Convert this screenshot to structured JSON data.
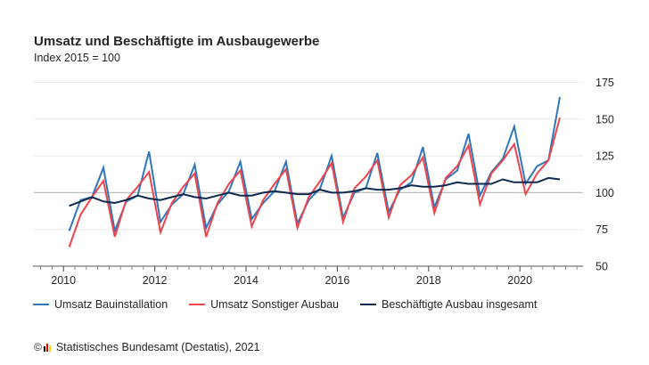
{
  "header": {
    "title": "Umsatz und Beschäftigte im Ausbaugewerbe",
    "subtitle": "Index 2015 = 100"
  },
  "footer": {
    "copyright_symbol": "©",
    "source": "Statistisches Bundesamt (Destatis), 2021",
    "logo_colors": [
      "#000000",
      "#dd0000",
      "#ffcc00"
    ]
  },
  "colors": {
    "bauinstallation": "#2f77bc",
    "sonstiger_ausbau": "#f0444b",
    "beschaeftigte": "#0e2b4f",
    "grid": "#e8e8e8",
    "reference_line": "#bdbdbd",
    "axis": "#555555"
  },
  "chart_data": {
    "type": "line",
    "title": "Umsatz und Beschäftigte im Ausbaugewerbe",
    "subtitle": "Index 2015 = 100",
    "xlabel": "",
    "ylabel": "",
    "x_unit": "quarter",
    "x": [
      "2010 Q1",
      "2010 Q2",
      "2010 Q3",
      "2010 Q4",
      "2011 Q1",
      "2011 Q2",
      "2011 Q3",
      "2011 Q4",
      "2012 Q1",
      "2012 Q2",
      "2012 Q3",
      "2012 Q4",
      "2013 Q1",
      "2013 Q2",
      "2013 Q3",
      "2013 Q4",
      "2014 Q1",
      "2014 Q2",
      "2014 Q3",
      "2014 Q4",
      "2015 Q1",
      "2015 Q2",
      "2015 Q3",
      "2015 Q4",
      "2016 Q1",
      "2016 Q2",
      "2016 Q3",
      "2016 Q4",
      "2017 Q1",
      "2017 Q2",
      "2017 Q3",
      "2017 Q4",
      "2018 Q1",
      "2018 Q2",
      "2018 Q3",
      "2018 Q4",
      "2019 Q1",
      "2019 Q2",
      "2019 Q3",
      "2019 Q4",
      "2020 Q1",
      "2020 Q2",
      "2020 Q3",
      "2020 Q4"
    ],
    "xlim": [
      2009.35,
      2021.4
    ],
    "x_ticks": [
      "2010",
      "2012",
      "2014",
      "2016",
      "2018",
      "2020"
    ],
    "x_tick_values": [
      2010,
      2012,
      2014,
      2016,
      2018,
      2020
    ],
    "ylim": [
      50,
      175
    ],
    "y_ticks": [
      "50",
      "75",
      "100",
      "125",
      "150",
      "175"
    ],
    "y_tick_values": [
      50,
      75,
      100,
      125,
      150,
      175
    ],
    "reference_line": 100,
    "grid": true,
    "legend_position": "bottom",
    "series": [
      {
        "name": "Umsatz Bauinstallation",
        "key": "bauinstallation",
        "values": [
          74,
          95,
          97,
          117,
          74,
          94,
          98,
          128,
          80,
          92,
          99,
          119,
          76,
          92,
          101,
          121,
          82,
          93,
          101,
          121,
          79,
          95,
          103,
          125,
          83,
          100,
          103,
          127,
          87,
          102,
          107,
          131,
          90,
          109,
          115,
          140,
          98,
          114,
          123,
          145,
          106,
          118,
          122,
          165
        ]
      },
      {
        "name": "Umsatz Sonstiger Ausbau",
        "key": "sonstiger_ausbau",
        "values": [
          63,
          85,
          97,
          108,
          70,
          95,
          104,
          114,
          73,
          93,
          104,
          113,
          70,
          93,
          106,
          115,
          77,
          95,
          106,
          116,
          76,
          97,
          108,
          120,
          80,
          103,
          111,
          122,
          83,
          105,
          112,
          124,
          86,
          110,
          118,
          132,
          92,
          113,
          122,
          133,
          99,
          113,
          122,
          151
        ]
      },
      {
        "name": "Beschäftigte Ausbau insgesamt",
        "key": "beschaeftigte",
        "values": [
          91,
          94,
          97,
          94,
          93,
          95,
          98,
          96,
          95,
          97,
          99,
          97,
          96,
          98,
          100,
          98,
          98,
          100,
          101,
          100,
          99,
          99,
          102,
          100,
          100,
          101,
          103,
          102,
          102,
          103,
          105,
          104,
          104,
          105,
          107,
          106,
          106,
          106,
          109,
          107,
          107,
          107,
          110,
          109
        ]
      }
    ]
  }
}
